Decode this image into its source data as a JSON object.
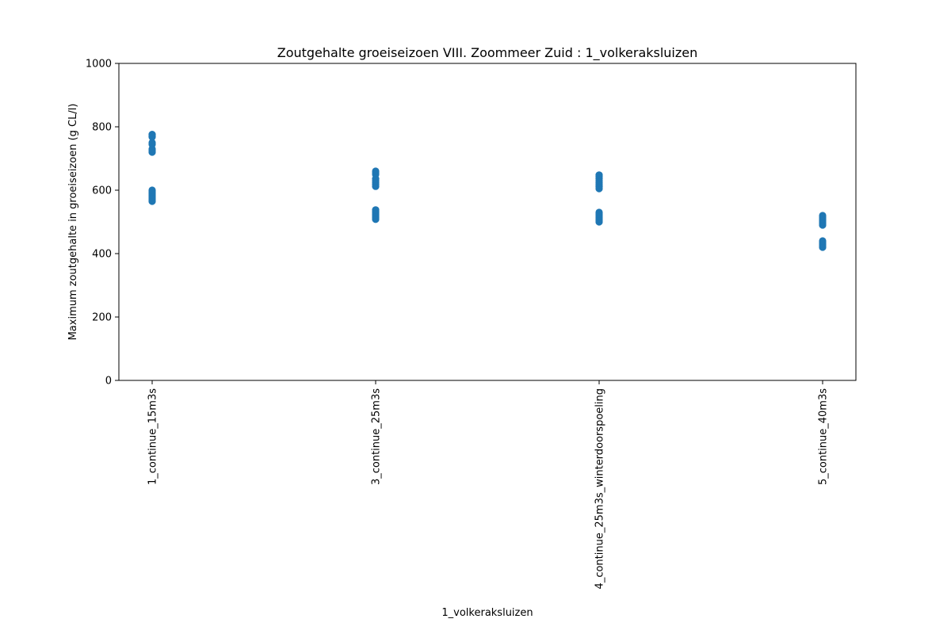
{
  "chart_data": {
    "type": "scatter",
    "title": "Zoutgehalte groeiseizoen VIII. Zoommeer Zuid : 1_volkeraksluizen",
    "xlabel": "1_volkeraksluizen",
    "ylabel": "Maximum zoutgehalte in groeiseizoen (g CL/l)",
    "ylim": [
      0,
      1000
    ],
    "yticks": [
      0,
      200,
      400,
      600,
      800,
      1000
    ],
    "grid": false,
    "categories": [
      "1_continue_15m3s",
      "3_continue_25m3s",
      "4_continue_25m3s_winterdoorspoeling",
      "5_continue_40m3s"
    ],
    "marker_color": "#1f77b4",
    "points": [
      {
        "category": "1_continue_15m3s",
        "values": [
          565,
          570,
          575,
          580,
          585,
          590,
          595,
          600,
          720,
          725,
          730,
          745,
          750,
          768,
          772,
          776
        ]
      },
      {
        "category": "3_continue_25m3s",
        "values": [
          508,
          513,
          518,
          523,
          528,
          533,
          538,
          612,
          618,
          624,
          630,
          636,
          650,
          655,
          660
        ]
      },
      {
        "category": "4_continue_25m3s_winterdoorspoeling",
        "values": [
          500,
          505,
          510,
          515,
          520,
          525,
          530,
          605,
          611,
          617,
          623,
          630,
          637,
          643,
          648
        ]
      },
      {
        "category": "5_continue_40m3s",
        "values": [
          420,
          425,
          430,
          435,
          440,
          490,
          495,
          500,
          505,
          510,
          515,
          520
        ]
      }
    ]
  }
}
